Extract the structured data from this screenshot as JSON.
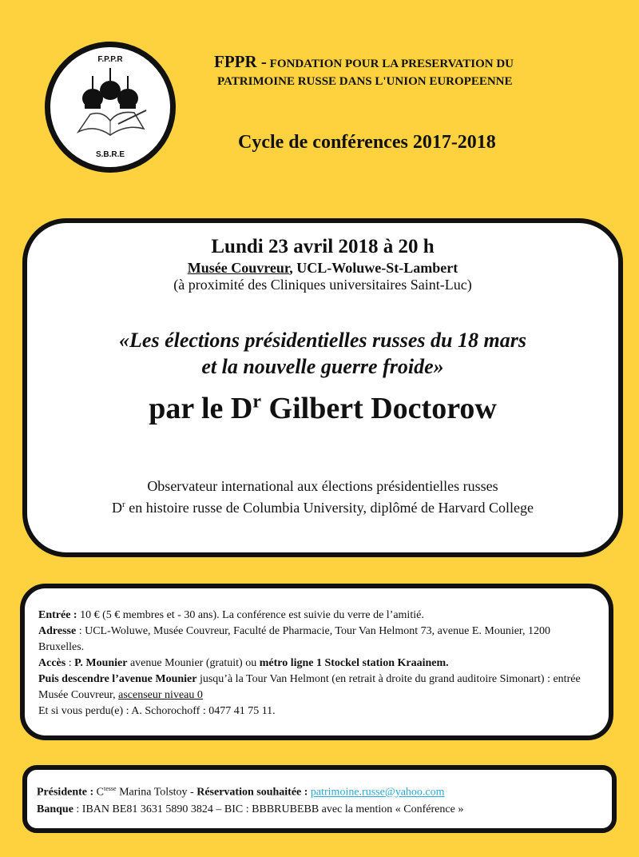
{
  "logo": {
    "top_text": "F.P.P.R",
    "bottom_text": "S.B.R.E"
  },
  "header": {
    "acronym": "FPPR -",
    "name_line1": "FONDATION POUR LA PRESERVATION DU",
    "name_line2": "PATRIMOINE RUSSE DANS  L'UNION EUROPEENNE",
    "cycle": "Cycle  de conférences 2017-2018"
  },
  "event": {
    "date": "Lundi 23 avril 2018 à 20 h",
    "venue_name": "Musée Couvreur",
    "venue_rest": ", UCL-Woluwe-St-Lambert",
    "proximity": "(à proximité des Cliniques universitaires Saint-Luc)",
    "title_line1": "«Les élections présidentielles russes du 18 mars",
    "title_line2": "et la nouvelle guerre froide»",
    "speaker_prefix": "par le D",
    "speaker_sup": "r",
    "speaker_name": " Gilbert Doctorow",
    "desc_line1": "Observateur international aux élections présidentielles russes",
    "desc_line2_prefix": "D",
    "desc_line2_sup": "r",
    "desc_line2": " en histoire russe de Columbia University, diplômé de Harvard College"
  },
  "info": {
    "entree_label": "Entrée :",
    "entree": " 10 € (5 € membres et - 30 ans). La conférence est suivie du verre de l’amitié.",
    "adresse_label": "Adresse",
    "adresse": " : UCL-Woluwe, Musée Couvreur, Faculté de Pharmacie, Tour Van Helmont 73, avenue E. Mounier, 1200 Bruxelles.",
    "acces_label": "Accès",
    "acces_1": " : ",
    "acces_p": "P. Mounier",
    "acces_2": " avenue Mounier (gratuit) ou ",
    "acces_metro": "métro ligne 1 Stockel station Kraainem.",
    "puis_label": "Puis descendre l’avenue Mounier",
    "puis": " jusqu’à la Tour Van Helmont (en retrait à droite du grand auditoire Simonart) : entrée Musée Couvreur, ",
    "puis_u": "ascenseur niveau 0",
    "perdu": "Et si vous perdu(e) : A. Schorochoff : 0477 41 75 11."
  },
  "footer": {
    "pres_label": "Présidente :",
    "pres_c": " C",
    "pres_sup": "tesse",
    "pres_name": "  Marina Tolstoy - ",
    "resa_label": "Réservation souhaitée :",
    "email": "patrimoine.russe@yahoo.com",
    "banque_label": "Banque",
    "banque": " : IBAN BE81 3631 5890 3824 – BIC : BBBRUBEBB avec la mention « Conférence »"
  }
}
